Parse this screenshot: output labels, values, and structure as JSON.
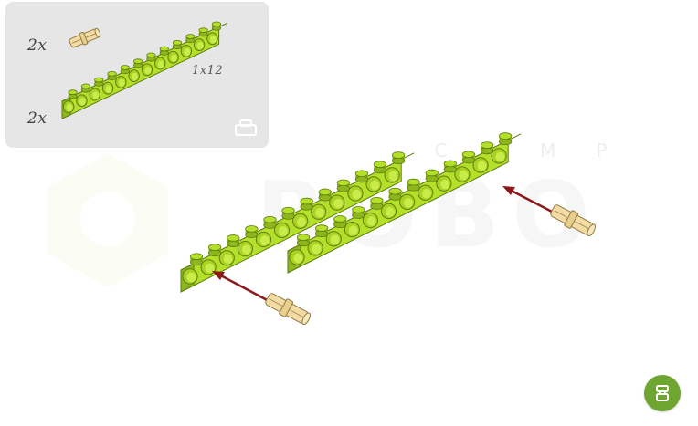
{
  "parts_list": {
    "pin_quantity": "2x",
    "beam_quantity": "2x",
    "beam_size": "1x12"
  },
  "watermark": {
    "brand": "ROBO",
    "sub": "CAMP"
  },
  "colors": {
    "beam": "#b5e02a",
    "beam_dark": "#8db51c",
    "pin": "#f2dca4",
    "arrow": "#8b1a1a",
    "panel": "#e6e6e6",
    "button": "#6fa531"
  },
  "icons": {
    "panel_corner": "brick-outline-icon",
    "menu": "brick-stack-icon"
  }
}
